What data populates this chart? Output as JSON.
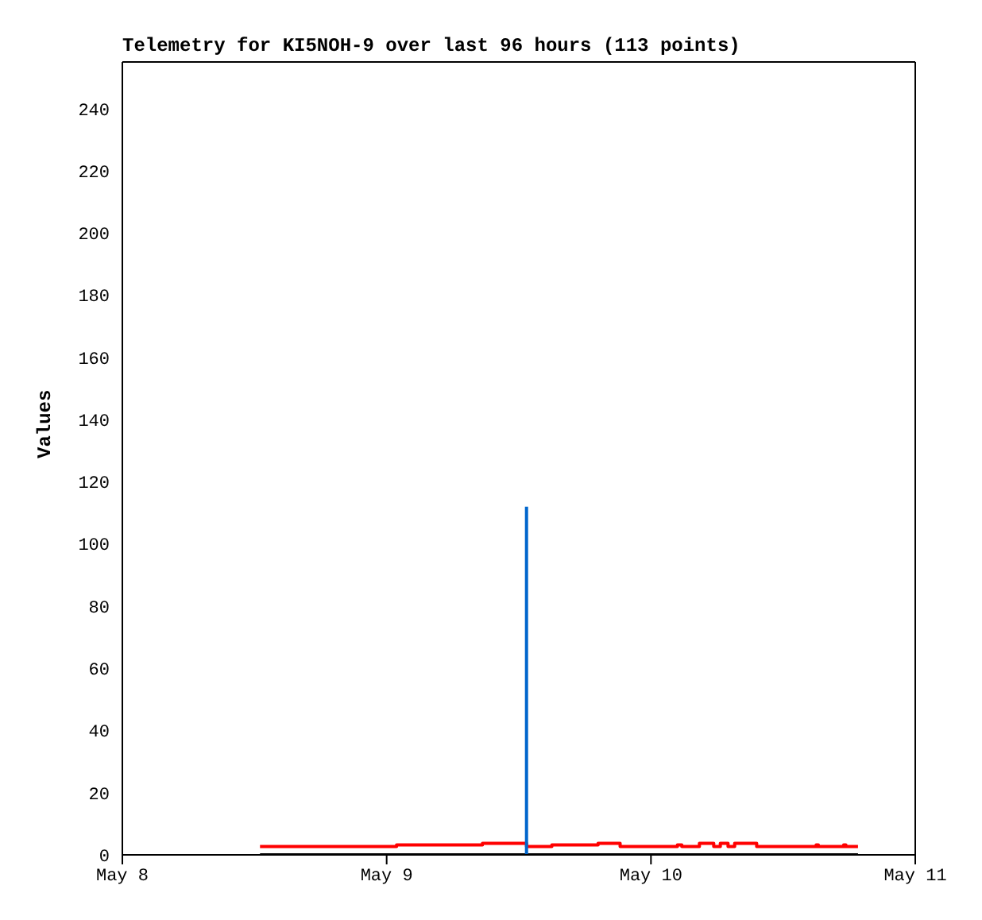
{
  "chart_data": {
    "type": "line",
    "title": "Telemetry for KI5NOH-9 over last 96 hours (113 points)",
    "ylabel": "Values",
    "xlim": [
      "--05-08",
      "--05-11"
    ],
    "xticks": [
      {
        "value": "--05-08",
        "label": "May 8"
      },
      {
        "value": "--05-09",
        "label": "May 9"
      },
      {
        "value": "--05-10",
        "label": "May 10"
      },
      {
        "value": "--05-11",
        "label": "May 11"
      }
    ],
    "ylim": [
      0,
      255
    ],
    "yticks": [
      0,
      20,
      40,
      60,
      80,
      100,
      120,
      140,
      160,
      180,
      200,
      220,
      240
    ],
    "marker": "none",
    "series": [
      {
        "color": "#000000",
        "x": [
          "--05-08T12:30",
          "--05-10T18:48"
        ],
        "values": [
          0,
          0
        ]
      },
      {
        "type": "step",
        "color": "#ff0000",
        "x": [
          "--05-08T12:30",
          "--05-09T00:54",
          "--05-09T08:42",
          "--05-09T12:42",
          "--05-09T15:00",
          "--05-09T19:12",
          "--05-09T21:12",
          "--05-10T02:24",
          "--05-10T02:48",
          "--05-10T04:24",
          "--05-10T05:42",
          "--05-10T06:18",
          "--05-10T07:00",
          "--05-10T07:36",
          "--05-10T09:36",
          "--05-10T15:00",
          "--05-10T15:12",
          "--05-10T17:30",
          "--05-10T17:42",
          "--05-10T18:48"
        ],
        "values": [
          2.7,
          3.2,
          3.7,
          2.7,
          3.2,
          3.7,
          2.7,
          3.2,
          2.7,
          3.7,
          2.7,
          3.7,
          2.7,
          3.7,
          2.7,
          3.2,
          2.7,
          3.2,
          2.7,
          2.7
        ]
      },
      {
        "color": "#0066cc",
        "x": [
          "--05-09T12:42",
          "--05-09T12:42"
        ],
        "values": [
          0,
          112
        ]
      }
    ]
  }
}
